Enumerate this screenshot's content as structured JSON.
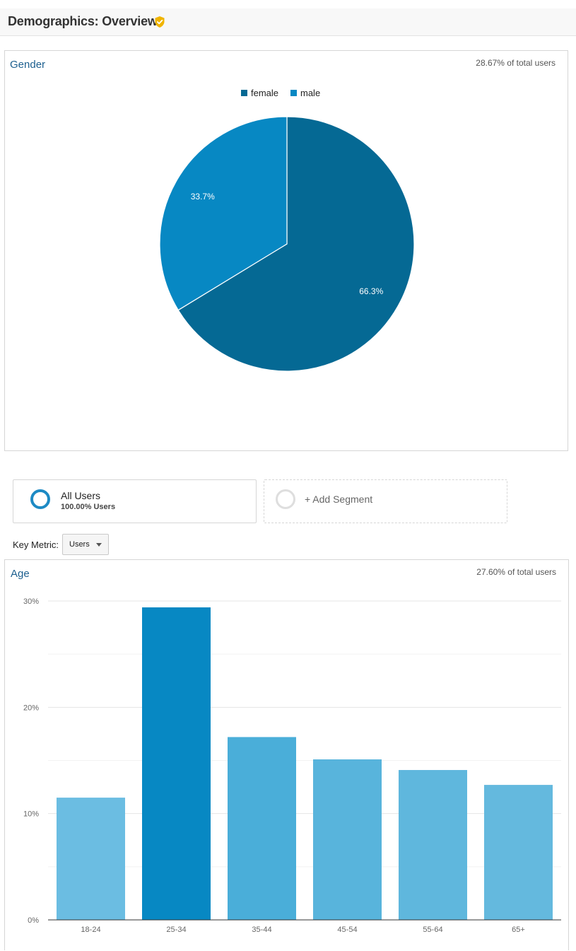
{
  "header": {
    "title": "Demographics: Overview",
    "icon": "shield-check-icon",
    "icon_color": "#f0b400"
  },
  "gender": {
    "title": "Gender",
    "note": "28.67% of total users",
    "legend": [
      {
        "label": "female",
        "color": "#056994"
      },
      {
        "label": "male",
        "color": "#0788c3"
      }
    ]
  },
  "segments": {
    "all_users": {
      "name": "All Users",
      "sub": "100.00% Users"
    },
    "add_segment": {
      "label": "+ Add Segment"
    }
  },
  "key_metric": {
    "label": "Key Metric:",
    "selected": "Users"
  },
  "age": {
    "title": "Age",
    "note": "27.60% of total users"
  },
  "chart_data": [
    {
      "type": "pie",
      "categories": [
        "female",
        "male"
      ],
      "values": [
        66.3,
        33.7
      ],
      "data_labels": [
        "66.3%",
        "33.7%"
      ],
      "colors": [
        "#056994",
        "#0788c3"
      ],
      "legend_position": "top-center"
    },
    {
      "type": "bar",
      "categories": [
        "18-24",
        "25-34",
        "35-44",
        "45-54",
        "55-64",
        "65+"
      ],
      "values": [
        11.5,
        29.4,
        17.2,
        15.1,
        14.1,
        12.7
      ],
      "colors": [
        "#6bbde2",
        "#0788c3",
        "#4aaed9",
        "#58b4dc",
        "#5fb7dd",
        "#64b9de"
      ],
      "ylim": [
        0,
        30
      ],
      "yticks": [
        "0%",
        "10%",
        "20%",
        "30%"
      ],
      "ytick_values": [
        0,
        10,
        20,
        30
      ],
      "grid": true
    }
  ]
}
